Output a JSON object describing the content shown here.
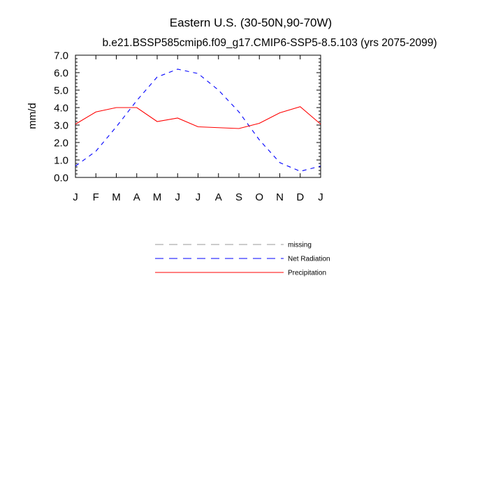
{
  "chart_data": {
    "type": "line",
    "title": "Eastern U.S. (30-50N,90-70W)",
    "subtitle": "b.e21.BSSP585cmip6.f09_g17.CMIP6-SSP5-8.5.103 (yrs 2075-2099)",
    "xlabel": "",
    "ylabel": "mm/d",
    "categories": [
      "J",
      "F",
      "M",
      "A",
      "M",
      "J",
      "J",
      "A",
      "S",
      "O",
      "N",
      "D",
      "J"
    ],
    "ylim": [
      0,
      7
    ],
    "yticks": [
      "0.0",
      "1.0",
      "2.0",
      "3.0",
      "4.0",
      "5.0",
      "6.0",
      "7.0"
    ],
    "grid": false,
    "legend_position": "bottom",
    "series": [
      {
        "name": "Net Radiation",
        "color": "#0000ff",
        "dash": "dashed",
        "values": [
          0.65,
          1.5,
          2.9,
          4.4,
          5.75,
          6.2,
          5.95,
          5.0,
          3.75,
          2.15,
          0.85,
          0.35,
          0.65
        ]
      },
      {
        "name": "Precipitation",
        "color": "#ff0000",
        "dash": "solid",
        "values": [
          3.05,
          3.75,
          4.0,
          4.0,
          3.2,
          3.4,
          2.9,
          2.85,
          2.8,
          3.1,
          3.7,
          4.05,
          3.05
        ]
      }
    ],
    "legend": [
      {
        "label": "missing",
        "color": "#999999",
        "dash": "dashed"
      },
      {
        "label": "Net Radiation",
        "color": "#0000ff",
        "dash": "dashed"
      },
      {
        "label": "Precipitation",
        "color": "#ff0000",
        "dash": "solid"
      }
    ]
  }
}
